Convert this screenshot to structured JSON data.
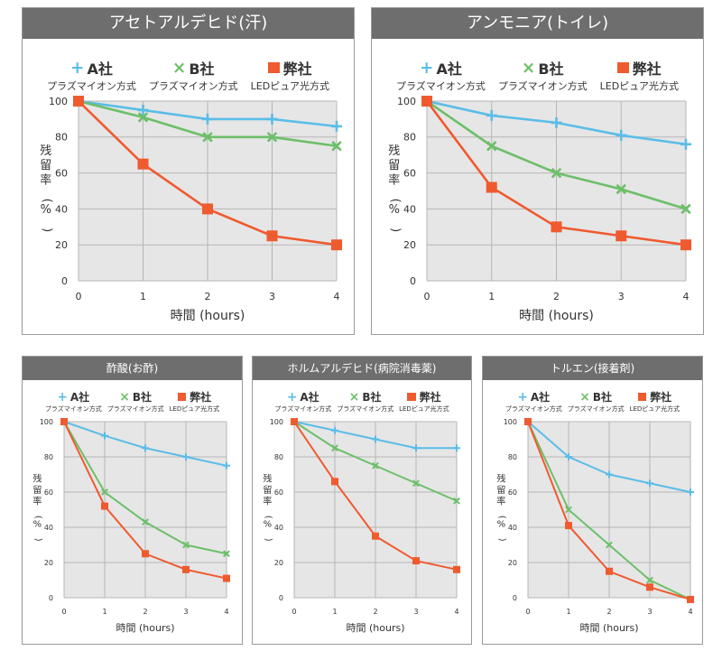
{
  "colors": {
    "a": "#5bbde8",
    "b": "#6dbf6a",
    "ours": "#ef5a2f",
    "plot_bg": "#e6e6e6",
    "grid": "#b5b5b5",
    "title_bg": "#6e6e6e"
  },
  "legend": [
    {
      "name": "A社",
      "sub": "プラズマイオン方式",
      "marker": "plus"
    },
    {
      "name": "B社",
      "sub": "プラズマイオン方式",
      "marker": "cross"
    },
    {
      "name": "弊社",
      "sub": "LEDピュア光方式",
      "marker": "square"
    }
  ],
  "chart_data": [
    {
      "type": "line",
      "title": "アセトアルデヒド(汗)",
      "xlabel": "時間 (hours)",
      "ylabel": "残留率(%)",
      "x": [
        0,
        1,
        2,
        3,
        4
      ],
      "xlim": [
        0,
        4
      ],
      "ylim": [
        0,
        100
      ],
      "yticks": [
        0,
        20,
        40,
        60,
        80,
        100
      ],
      "grid": true,
      "legend_position": "top",
      "series": [
        {
          "name": "A社",
          "values": [
            100,
            95,
            90,
            90,
            86
          ]
        },
        {
          "name": "B社",
          "values": [
            100,
            91,
            80,
            80,
            75
          ]
        },
        {
          "name": "弊社",
          "values": [
            100,
            65,
            40,
            25,
            20
          ]
        }
      ]
    },
    {
      "type": "line",
      "title": "アンモニア(トイレ)",
      "xlabel": "時間 (hours)",
      "ylabel": "残留率(%)",
      "x": [
        0,
        1,
        2,
        3,
        4
      ],
      "xlim": [
        0,
        4
      ],
      "ylim": [
        0,
        100
      ],
      "yticks": [
        0,
        20,
        40,
        60,
        80,
        100
      ],
      "grid": true,
      "legend_position": "top",
      "series": [
        {
          "name": "A社",
          "values": [
            100,
            92,
            88,
            81,
            76
          ]
        },
        {
          "name": "B社",
          "values": [
            100,
            75,
            60,
            51,
            40
          ]
        },
        {
          "name": "弊社",
          "values": [
            100,
            52,
            30,
            25,
            20
          ]
        }
      ]
    },
    {
      "type": "line",
      "title": "酢酸(お酢)",
      "xlabel": "時間 (hours)",
      "ylabel": "残留率(%)",
      "x": [
        0,
        1,
        2,
        3,
        4
      ],
      "xlim": [
        0,
        4
      ],
      "ylim": [
        0,
        100
      ],
      "yticks": [
        0,
        20,
        40,
        60,
        80,
        100
      ],
      "grid": true,
      "legend_position": "top",
      "series": [
        {
          "name": "A社",
          "values": [
            100,
            92,
            85,
            80,
            75
          ]
        },
        {
          "name": "B社",
          "values": [
            100,
            60,
            43,
            30,
            25
          ]
        },
        {
          "name": "弊社",
          "values": [
            100,
            52,
            25,
            16,
            11
          ]
        }
      ]
    },
    {
      "type": "line",
      "title": "ホルムアルデヒド(病院消毒薬)",
      "xlabel": "時間 (hours)",
      "ylabel": "残留率(%)",
      "x": [
        0,
        1,
        2,
        3,
        4
      ],
      "xlim": [
        0,
        4
      ],
      "ylim": [
        0,
        100
      ],
      "yticks": [
        0,
        20,
        40,
        60,
        80,
        100
      ],
      "grid": true,
      "legend_position": "top",
      "series": [
        {
          "name": "A社",
          "values": [
            100,
            95,
            90,
            85,
            85
          ]
        },
        {
          "name": "B社",
          "values": [
            100,
            85,
            75,
            65,
            55
          ]
        },
        {
          "name": "弊社",
          "values": [
            100,
            66,
            35,
            21,
            16
          ]
        }
      ]
    },
    {
      "type": "line",
      "title": "トルエン(接着剤)",
      "xlabel": "時間 (hours)",
      "ylabel": "残留率(%)",
      "x": [
        0,
        1,
        2,
        3,
        4
      ],
      "xlim": [
        0,
        4
      ],
      "ylim": [
        0,
        100
      ],
      "yticks": [
        0,
        20,
        40,
        60,
        80,
        100
      ],
      "grid": true,
      "legend_position": "top",
      "series": [
        {
          "name": "A社",
          "values": [
            100,
            80,
            70,
            65,
            60
          ]
        },
        {
          "name": "B社",
          "values": [
            100,
            50,
            30,
            10,
            -1
          ]
        },
        {
          "name": "弊社",
          "values": [
            100,
            41,
            15,
            6,
            -1
          ]
        }
      ]
    }
  ]
}
